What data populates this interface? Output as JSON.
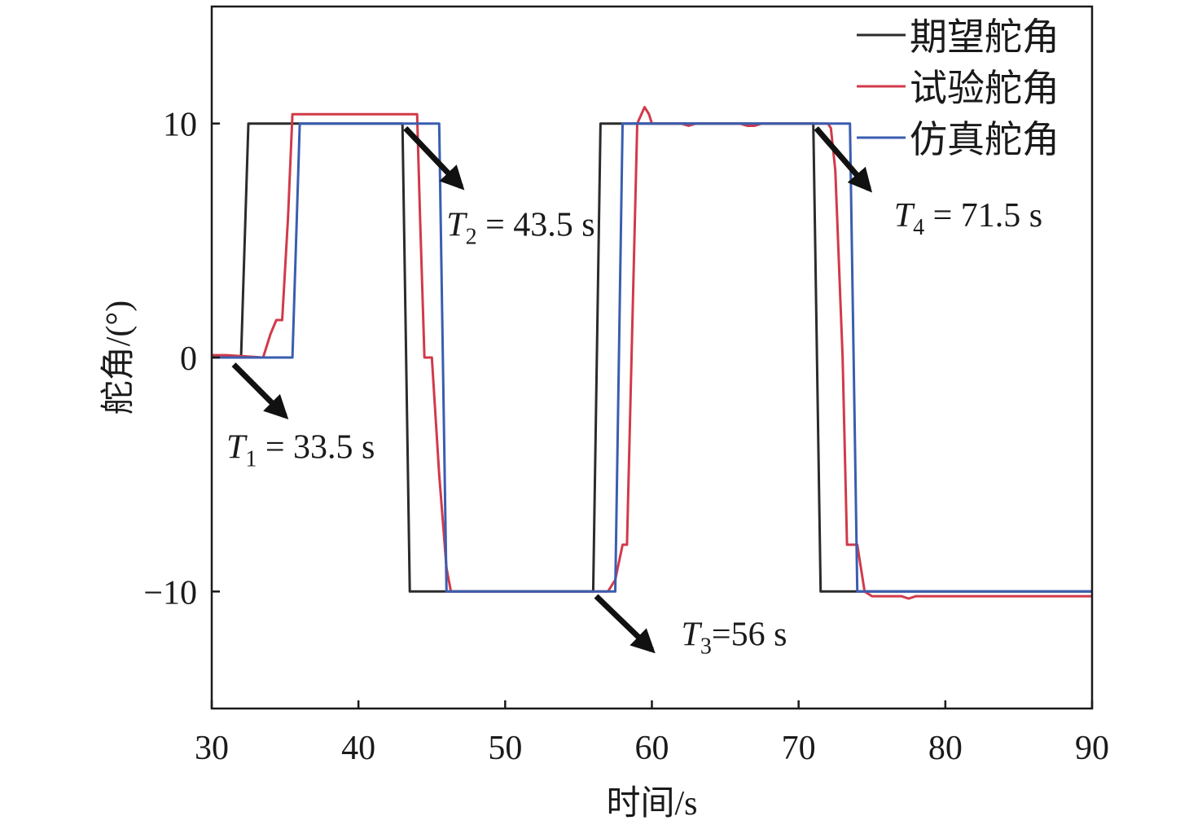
{
  "chart_data": {
    "type": "line",
    "xlabel": "时间/s",
    "ylabel": "舵角/(°)",
    "xlim": [
      30,
      90
    ],
    "ylim": [
      -15,
      15
    ],
    "xticks": [
      30,
      40,
      50,
      60,
      70,
      80,
      90
    ],
    "yticks": [
      -10,
      0,
      10
    ],
    "ytick_labels": [
      "−10",
      "0",
      "10"
    ],
    "grid": false,
    "legend_position": "top-right",
    "colors": {
      "expected": "#2b2b2b",
      "test": "#d13a4a",
      "sim": "#3a5db0",
      "arrow": "#111111"
    },
    "series": [
      {
        "name": "期望舵角",
        "color": "#2b2b2b",
        "x": [
          30,
          32,
          32.5,
          43,
          43.5,
          56,
          56.5,
          71,
          71.5,
          90
        ],
        "y": [
          0,
          0,
          10,
          10,
          -10,
          -10,
          10,
          10,
          -10,
          -10
        ]
      },
      {
        "name": "试验舵角",
        "color": "#d13a4a",
        "x": [
          30,
          31,
          33.5,
          34,
          34.4,
          34.8,
          35.2,
          35.5,
          44,
          44.2,
          44.5,
          45,
          45.5,
          46,
          46.3,
          57,
          57.5,
          58,
          58.3,
          59,
          59.5,
          59.8,
          60,
          62,
          62.5,
          63,
          66,
          66.5,
          67,
          67.5,
          68,
          72,
          72.2,
          72.5,
          73,
          73.3,
          74,
          74.5,
          75,
          77,
          77.5,
          78,
          90
        ],
        "y": [
          0.1,
          0.1,
          0,
          1,
          1.6,
          1.6,
          6,
          10.4,
          10.4,
          6,
          0,
          0,
          -5,
          -9,
          -10,
          -10,
          -9.5,
          -8,
          -8,
          10,
          10.7,
          10.4,
          10,
          10,
          9.9,
          10,
          10,
          9.9,
          9.9,
          10,
          10,
          10,
          9.8,
          8,
          0,
          -8,
          -8,
          -10,
          -10.2,
          -10.2,
          -10.3,
          -10.2,
          -10.2
        ]
      },
      {
        "name": "仿真舵角",
        "color": "#3a5db0",
        "x": [
          30,
          35.5,
          36,
          45.5,
          46,
          57.5,
          58,
          73.5,
          74,
          90
        ],
        "y": [
          0,
          0,
          10,
          10,
          -10,
          -10,
          10,
          10,
          -10,
          -10
        ]
      }
    ],
    "annotations": [
      {
        "base": "T",
        "sub": "1",
        "rest": " = 33.5 s",
        "arrow_from": [
          31.5,
          -0.3
        ],
        "arrow_to": [
          35,
          -2.5
        ],
        "text_at": [
          31,
          -4.3
        ]
      },
      {
        "base": "T",
        "sub": "2",
        "rest": " = 43.5 s",
        "arrow_from": [
          43.2,
          9.8
        ],
        "arrow_to": [
          47,
          7.3
        ],
        "text_at": [
          46,
          5.2
        ]
      },
      {
        "base": "T",
        "sub": "3",
        "rest": "=56 s",
        "arrow_from": [
          56.2,
          -10.2
        ],
        "arrow_to": [
          60,
          -12.5
        ],
        "text_at": [
          62,
          -12.3
        ]
      },
      {
        "base": "T",
        "sub": "4",
        "rest": " = 71.5 s",
        "arrow_from": [
          71.2,
          9.8
        ],
        "arrow_to": [
          74.8,
          7.2
        ],
        "text_at": [
          76.5,
          5.6
        ]
      }
    ]
  }
}
